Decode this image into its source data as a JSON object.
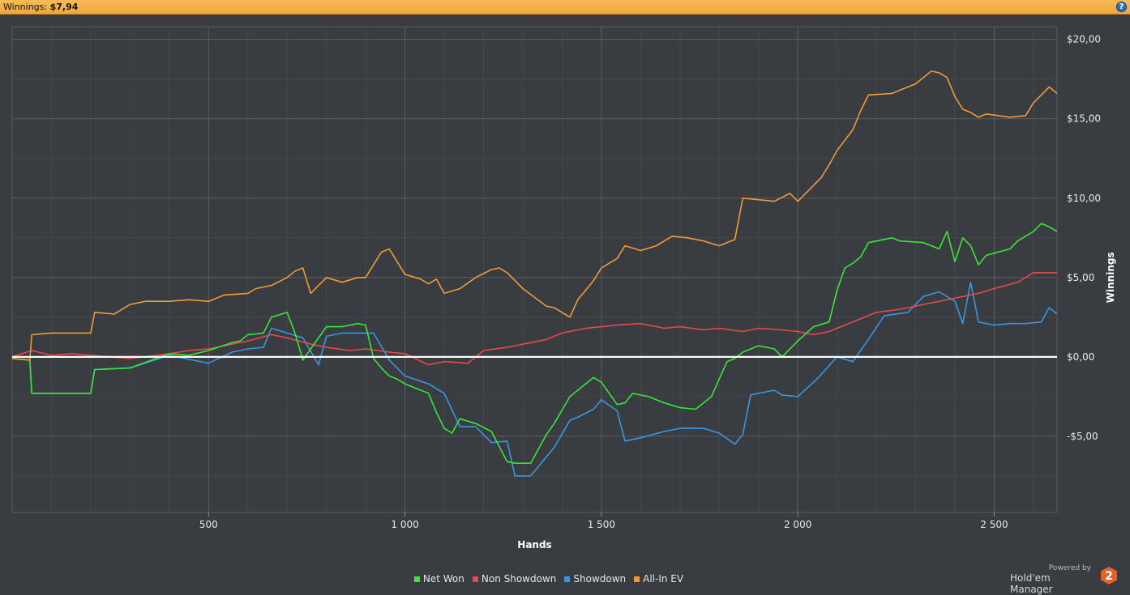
{
  "header": {
    "label": "Winnings:",
    "value": "$7,94",
    "help_icon": "help-icon"
  },
  "chart_data": {
    "type": "line",
    "xlabel": "Hands",
    "ylabel": "Winnings",
    "xlim": [
      0,
      2660
    ],
    "ylim": [
      -9.8,
      20.8
    ],
    "x_ticks": [
      500,
      1000,
      1500,
      2000,
      2500
    ],
    "x_tick_labels": [
      "500",
      "1 000",
      "1 500",
      "2 000",
      "2 500"
    ],
    "y_ticks": [
      -5,
      0,
      5,
      10,
      15,
      20
    ],
    "y_tick_labels": [
      "-$5,00",
      "$0,00",
      "$5,00",
      "$10,00",
      "$15,00",
      "$20,00"
    ],
    "grid": true,
    "zero_line": true,
    "legend_position": "bottom",
    "series": [
      {
        "name": "Net Won",
        "color": "#39e639",
        "x": [
          0,
          45,
          50,
          100,
          200,
          210,
          300,
          400,
          450,
          500,
          560,
          580,
          600,
          640,
          660,
          700,
          720,
          740,
          760,
          800,
          840,
          880,
          900,
          920,
          940,
          960,
          980,
          1000,
          1060,
          1080,
          1100,
          1120,
          1140,
          1180,
          1220,
          1260,
          1280,
          1320,
          1360,
          1380,
          1420,
          1440,
          1480,
          1500,
          1540,
          1560,
          1580,
          1620,
          1660,
          1700,
          1740,
          1780,
          1820,
          1840,
          1860,
          1900,
          1940,
          1960,
          2000,
          2040,
          2080,
          2100,
          2120,
          2140,
          2160,
          2180,
          2240,
          2260,
          2320,
          2360,
          2380,
          2400,
          2420,
          2440,
          2460,
          2480,
          2540,
          2560,
          2600,
          2620,
          2640,
          2660
        ],
        "y": [
          -0.1,
          -0.2,
          -2.3,
          -2.3,
          -2.3,
          -0.8,
          -0.7,
          0.2,
          0.1,
          0.4,
          0.9,
          1.0,
          1.4,
          1.5,
          2.5,
          2.8,
          1.5,
          -0.2,
          0.5,
          1.9,
          1.9,
          2.1,
          2.0,
          -0.1,
          -0.7,
          -1.2,
          -1.4,
          -1.7,
          -2.3,
          -3.5,
          -4.5,
          -4.8,
          -3.9,
          -4.2,
          -4.7,
          -6.6,
          -6.7,
          -6.7,
          -4.9,
          -4.2,
          -2.5,
          -2.1,
          -1.3,
          -1.6,
          -3.0,
          -2.9,
          -2.3,
          -2.5,
          -2.9,
          -3.2,
          -3.3,
          -2.5,
          -0.3,
          -0.1,
          0.3,
          0.7,
          0.5,
          0.0,
          1.0,
          1.9,
          2.2,
          4.2,
          5.6,
          5.9,
          6.3,
          7.2,
          7.5,
          7.3,
          7.2,
          6.8,
          7.9,
          6.0,
          7.5,
          7.0,
          5.8,
          6.4,
          6.8,
          7.3,
          7.9,
          8.4,
          8.2,
          7.9
        ]
      },
      {
        "name": "Non Showdown",
        "color": "#e74a4a",
        "x": [
          0,
          50,
          100,
          150,
          200,
          300,
          400,
          450,
          500,
          540,
          600,
          660,
          700,
          760,
          800,
          860,
          900,
          960,
          1000,
          1060,
          1100,
          1160,
          1200,
          1260,
          1300,
          1360,
          1400,
          1460,
          1500,
          1540,
          1600,
          1660,
          1700,
          1760,
          1800,
          1860,
          1900,
          1960,
          2000,
          2040,
          2080,
          2120,
          2160,
          2200,
          2260,
          2300,
          2360,
          2400,
          2460,
          2500,
          2560,
          2600,
          2660
        ],
        "y": [
          0.0,
          0.4,
          0.1,
          0.2,
          0.1,
          -0.1,
          0.2,
          0.4,
          0.5,
          0.7,
          1.0,
          1.4,
          1.2,
          0.8,
          0.6,
          0.4,
          0.5,
          0.3,
          0.2,
          -0.5,
          -0.3,
          -0.4,
          0.4,
          0.6,
          0.8,
          1.1,
          1.5,
          1.8,
          1.9,
          2.0,
          2.1,
          1.8,
          1.9,
          1.7,
          1.8,
          1.6,
          1.8,
          1.7,
          1.6,
          1.4,
          1.6,
          2.0,
          2.4,
          2.8,
          3.0,
          3.2,
          3.5,
          3.7,
          4.0,
          4.3,
          4.7,
          5.3,
          5.3
        ]
      },
      {
        "name": "Showdown",
        "color": "#3b96e2",
        "x": [
          0,
          45,
          50,
          100,
          200,
          210,
          300,
          400,
          460,
          500,
          560,
          600,
          640,
          660,
          700,
          740,
          780,
          800,
          840,
          880,
          920,
          960,
          1000,
          1060,
          1100,
          1140,
          1180,
          1220,
          1260,
          1280,
          1320,
          1380,
          1420,
          1440,
          1480,
          1500,
          1540,
          1560,
          1600,
          1660,
          1700,
          1760,
          1800,
          1840,
          1860,
          1880,
          1900,
          1940,
          1960,
          2000,
          2040,
          2060,
          2100,
          2140,
          2180,
          2220,
          2280,
          2320,
          2360,
          2400,
          2420,
          2440,
          2460,
          2500,
          2540,
          2580,
          2620,
          2640,
          2660
        ],
        "y": [
          -0.1,
          -0.2,
          -2.3,
          -2.3,
          -2.3,
          -0.8,
          -0.7,
          0.1,
          -0.2,
          -0.4,
          0.3,
          0.5,
          0.6,
          1.8,
          1.5,
          1.2,
          -0.5,
          1.3,
          1.5,
          1.5,
          1.5,
          -0.2,
          -1.2,
          -1.7,
          -2.3,
          -4.4,
          -4.4,
          -5.4,
          -5.3,
          -7.5,
          -7.5,
          -5.7,
          -4.0,
          -3.8,
          -3.3,
          -2.7,
          -3.4,
          -5.3,
          -5.1,
          -4.7,
          -4.5,
          -4.5,
          -4.8,
          -5.5,
          -4.9,
          -2.4,
          -2.3,
          -2.1,
          -2.4,
          -2.5,
          -1.6,
          -1.1,
          0.0,
          -0.3,
          1.1,
          2.6,
          2.8,
          3.8,
          4.1,
          3.5,
          2.1,
          4.7,
          2.2,
          2.0,
          2.1,
          2.1,
          2.2,
          3.1,
          2.7
        ]
      },
      {
        "name": "All-In EV",
        "color": "#f29a35",
        "x": [
          0,
          45,
          50,
          100,
          150,
          200,
          210,
          260,
          300,
          340,
          400,
          450,
          500,
          540,
          600,
          620,
          660,
          700,
          720,
          740,
          760,
          800,
          840,
          880,
          900,
          920,
          940,
          960,
          1000,
          1040,
          1060,
          1080,
          1100,
          1140,
          1180,
          1220,
          1240,
          1260,
          1300,
          1360,
          1380,
          1420,
          1440,
          1480,
          1500,
          1540,
          1560,
          1600,
          1640,
          1680,
          1720,
          1760,
          1800,
          1840,
          1860,
          1900,
          1940,
          1980,
          2000,
          2040,
          2060,
          2080,
          2100,
          2140,
          2160,
          2180,
          2240,
          2260,
          2300,
          2340,
          2360,
          2380,
          2400,
          2420,
          2440,
          2460,
          2480,
          2540,
          2580,
          2600,
          2620,
          2640,
          2660
        ],
        "y": [
          -0.1,
          -0.2,
          1.4,
          1.5,
          1.5,
          1.5,
          2.8,
          2.7,
          3.3,
          3.5,
          3.5,
          3.6,
          3.5,
          3.9,
          4.0,
          4.3,
          4.5,
          5.0,
          5.4,
          5.6,
          4.0,
          5.0,
          4.7,
          5.0,
          5.0,
          5.8,
          6.6,
          6.8,
          5.2,
          4.9,
          4.6,
          4.9,
          4.0,
          4.3,
          5.0,
          5.5,
          5.6,
          5.3,
          4.3,
          3.2,
          3.1,
          2.5,
          3.6,
          4.8,
          5.6,
          6.2,
          7.0,
          6.7,
          7.0,
          7.6,
          7.5,
          7.3,
          7.0,
          7.4,
          10.0,
          9.9,
          9.8,
          10.3,
          9.8,
          10.8,
          11.3,
          12.1,
          13.0,
          14.3,
          15.5,
          16.5,
          16.6,
          16.8,
          17.2,
          18.0,
          17.9,
          17.6,
          16.4,
          15.6,
          15.4,
          15.1,
          15.3,
          15.1,
          15.2,
          16.0,
          16.5,
          17.0,
          16.6
        ]
      }
    ]
  },
  "legend": [
    {
      "label": "Net Won",
      "color": "#39e639"
    },
    {
      "label": "Non Showdown",
      "color": "#e74a4a"
    },
    {
      "label": "Showdown",
      "color": "#3b96e2"
    },
    {
      "label": "All-In EV",
      "color": "#f29a35"
    }
  ],
  "branding": {
    "powered_by": "Powered by",
    "name": "Hold'em Manager",
    "logo_text": "2"
  }
}
